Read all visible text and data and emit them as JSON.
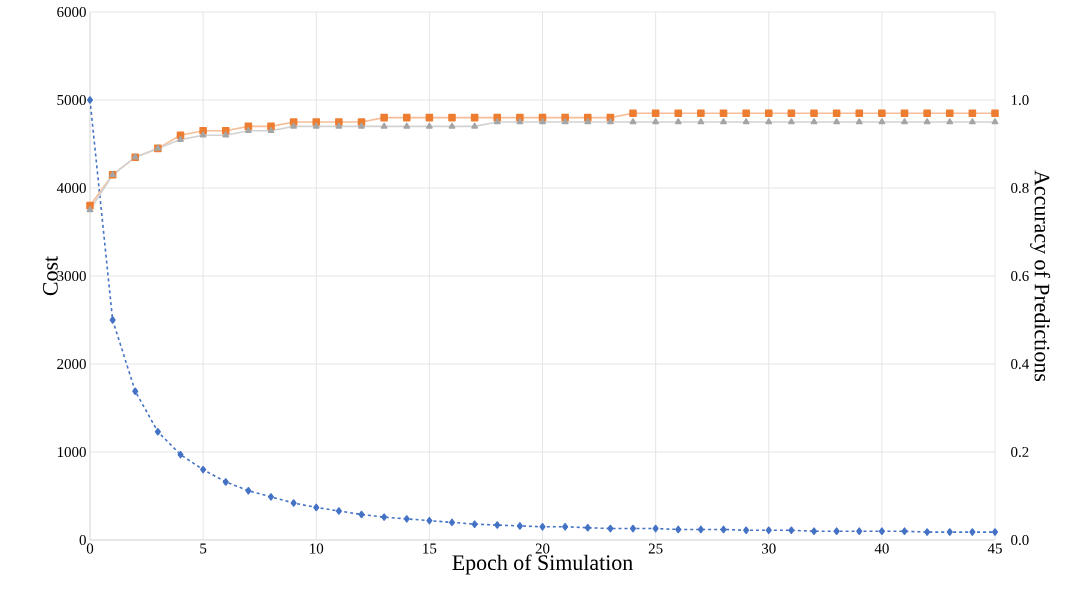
{
  "chart_data": {
    "type": "line",
    "xlabel": "Epoch of Simulation",
    "ylabel": "Cost",
    "y2label": "Accuracy of Predictions",
    "categories": [
      "0",
      null,
      null,
      null,
      null,
      "5",
      null,
      null,
      null,
      null,
      "10",
      null,
      null,
      null,
      null,
      "15",
      null,
      null,
      null,
      null,
      "20",
      null,
      null,
      null,
      null,
      "25",
      null,
      null,
      null,
      null,
      "30",
      null,
      null,
      null,
      null,
      "40",
      null,
      null,
      null,
      null,
      "45"
    ],
    "ylim": [
      0,
      6000
    ],
    "yticks": [
      0,
      1000,
      2000,
      3000,
      4000,
      5000,
      6000
    ],
    "y2lim": [
      0,
      1.2
    ],
    "y2ticks": [
      {
        "value": 0,
        "label": "0.0"
      },
      0.2,
      0.4,
      0.6,
      0.8,
      {
        "value": 1,
        "label": "1.0"
      }
    ],
    "grid": true,
    "series": [
      {
        "color": "#4472c4",
        "marker": "diamond",
        "line_style": "dashed",
        "values": [
          5000,
          2500,
          1690,
          1230,
          970,
          800,
          660,
          560,
          490,
          420,
          370,
          330,
          290,
          260,
          240,
          220,
          200,
          180,
          170,
          160,
          150,
          150,
          140,
          130,
          130,
          130,
          120,
          120,
          120,
          110,
          110,
          110,
          100,
          100,
          100,
          100,
          100,
          90,
          90,
          90,
          90
        ]
      },
      {
        "color": "#ed7d31",
        "marker": "square",
        "line_style": "solid",
        "axis": "y2",
        "values": [
          0.76,
          0.83,
          0.87,
          0.89,
          0.92,
          0.93,
          0.93,
          0.94,
          0.94,
          0.95,
          0.95,
          0.95,
          0.95,
          0.96,
          0.96,
          0.96,
          0.96,
          0.96,
          0.96,
          0.96,
          0.96,
          0.96,
          0.96,
          0.96,
          0.97,
          0.97,
          0.97,
          0.97,
          0.97,
          0.97,
          0.97,
          0.97,
          0.97,
          0.97,
          0.97,
          0.97,
          0.97,
          0.97,
          0.97,
          0.97,
          0.97
        ]
      },
      {
        "color": "#a5a5a5",
        "marker": "triangle",
        "line_style": "solid",
        "axis": "y2",
        "values": [
          0.75,
          0.83,
          0.87,
          0.89,
          0.91,
          0.92,
          0.92,
          0.93,
          0.93,
          0.94,
          0.94,
          0.94,
          0.94,
          0.94,
          0.94,
          0.94,
          0.94,
          0.94,
          0.95,
          0.95,
          0.95,
          0.95,
          0.95,
          0.95,
          0.95,
          0.95,
          0.95,
          0.95,
          0.95,
          0.95,
          0.95,
          0.95,
          0.95,
          0.95,
          0.95,
          0.95,
          0.95,
          0.95,
          0.95,
          0.95,
          0.95
        ]
      }
    ]
  }
}
